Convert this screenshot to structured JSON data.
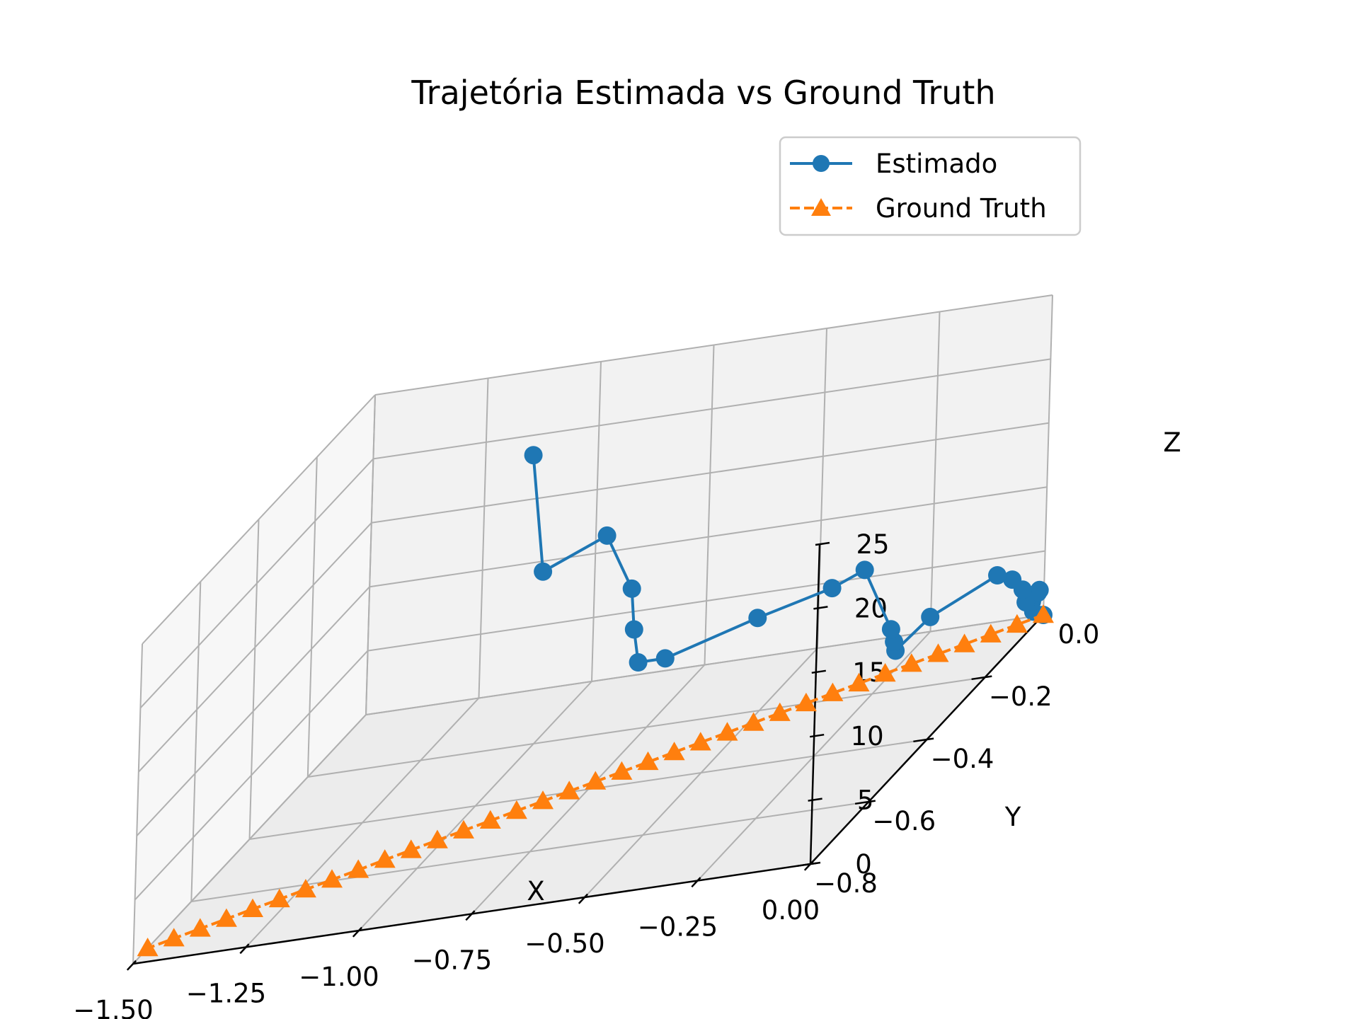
{
  "chart_data": {
    "type": "line",
    "projection": "3d",
    "title": "Trajetória Estimada vs Ground Truth",
    "xlabel": "X",
    "ylabel": "Y",
    "zlabel": "Z",
    "xlim": [
      -1.5,
      0.0
    ],
    "ylim": [
      -0.8,
      0.0
    ],
    "zlim": [
      0,
      25
    ],
    "x_ticks": [
      "−1.50",
      "−1.25",
      "−1.00",
      "−0.75",
      "−0.50",
      "−0.25",
      "0.00"
    ],
    "y_ticks": [
      "0.0",
      "−0.2",
      "−0.4",
      "−0.6",
      "−0.8"
    ],
    "z_ticks": [
      "0",
      "5",
      "10",
      "15",
      "20",
      "25"
    ],
    "grid": true,
    "legend_position": "upper right",
    "series": [
      {
        "name": "Estimado",
        "color": "#1f77b4",
        "marker": "circle",
        "linestyle": "solid",
        "points": [
          [
            0.0,
            0.0,
            0.0
          ],
          [
            -0.01,
            -0.02,
            0.8
          ],
          [
            -0.02,
            -0.01,
            1.4
          ],
          [
            -0.01,
            0.0,
            2.0
          ],
          [
            -0.02,
            0.01,
            1.6
          ],
          [
            -0.04,
            0.0,
            1.2
          ],
          [
            -0.06,
            0.02,
            1.8
          ],
          [
            -0.09,
            0.03,
            2.5
          ],
          [
            -0.13,
            0.04,
            2.8
          ],
          [
            -0.22,
            -0.05,
            2.2
          ],
          [
            -0.27,
            -0.09,
            0.8
          ],
          [
            -0.28,
            -0.08,
            1.3
          ],
          [
            -0.3,
            -0.06,
            1.9
          ],
          [
            -0.4,
            0.0,
            5.6
          ],
          [
            -0.44,
            -0.05,
            5.6
          ],
          [
            -0.56,
            -0.12,
            5.6
          ],
          [
            -0.7,
            -0.22,
            5.6
          ],
          [
            -0.76,
            -0.22,
            5.6
          ],
          [
            -0.79,
            -0.19,
            7.6
          ],
          [
            -0.81,
            -0.17,
            10.4
          ],
          [
            -0.9,
            -0.12,
            13.8
          ],
          [
            -0.99,
            -0.2,
            13.4
          ],
          [
            -1.05,
            -0.15,
            21.6
          ]
        ]
      },
      {
        "name": "Ground Truth",
        "color": "#ff7f0e",
        "marker": "triangle",
        "linestyle": "dashed",
        "points": [
          [
            0.0,
            0.0,
            0.0
          ],
          [
            -0.044,
            -0.022,
            0.0
          ],
          [
            -0.088,
            -0.044,
            0.0
          ],
          [
            -0.132,
            -0.066,
            0.0
          ],
          [
            -0.176,
            -0.088,
            0.0
          ],
          [
            -0.221,
            -0.11,
            0.0
          ],
          [
            -0.265,
            -0.132,
            0.0
          ],
          [
            -0.309,
            -0.154,
            0.0
          ],
          [
            -0.353,
            -0.176,
            0.0
          ],
          [
            -0.397,
            -0.199,
            0.0
          ],
          [
            -0.441,
            -0.221,
            0.0
          ],
          [
            -0.485,
            -0.243,
            0.0
          ],
          [
            -0.529,
            -0.265,
            0.0
          ],
          [
            -0.574,
            -0.287,
            0.0
          ],
          [
            -0.618,
            -0.309,
            0.0
          ],
          [
            -0.662,
            -0.331,
            0.0
          ],
          [
            -0.706,
            -0.353,
            0.0
          ],
          [
            -0.75,
            -0.375,
            0.0
          ],
          [
            -0.794,
            -0.397,
            0.0
          ],
          [
            -0.838,
            -0.419,
            0.0
          ],
          [
            -0.882,
            -0.441,
            0.0
          ],
          [
            -0.926,
            -0.463,
            0.0
          ],
          [
            -0.971,
            -0.485,
            0.0
          ],
          [
            -1.015,
            -0.507,
            0.0
          ],
          [
            -1.059,
            -0.529,
            0.0
          ],
          [
            -1.103,
            -0.551,
            0.0
          ],
          [
            -1.147,
            -0.574,
            0.0
          ],
          [
            -1.191,
            -0.596,
            0.0
          ],
          [
            -1.235,
            -0.618,
            0.0
          ],
          [
            -1.279,
            -0.64,
            0.0
          ],
          [
            -1.324,
            -0.662,
            0.0
          ],
          [
            -1.368,
            -0.684,
            0.0
          ],
          [
            -1.412,
            -0.706,
            0.0
          ],
          [
            -1.456,
            -0.728,
            0.0
          ],
          [
            -1.5,
            -0.75,
            0.0
          ]
        ]
      }
    ]
  }
}
